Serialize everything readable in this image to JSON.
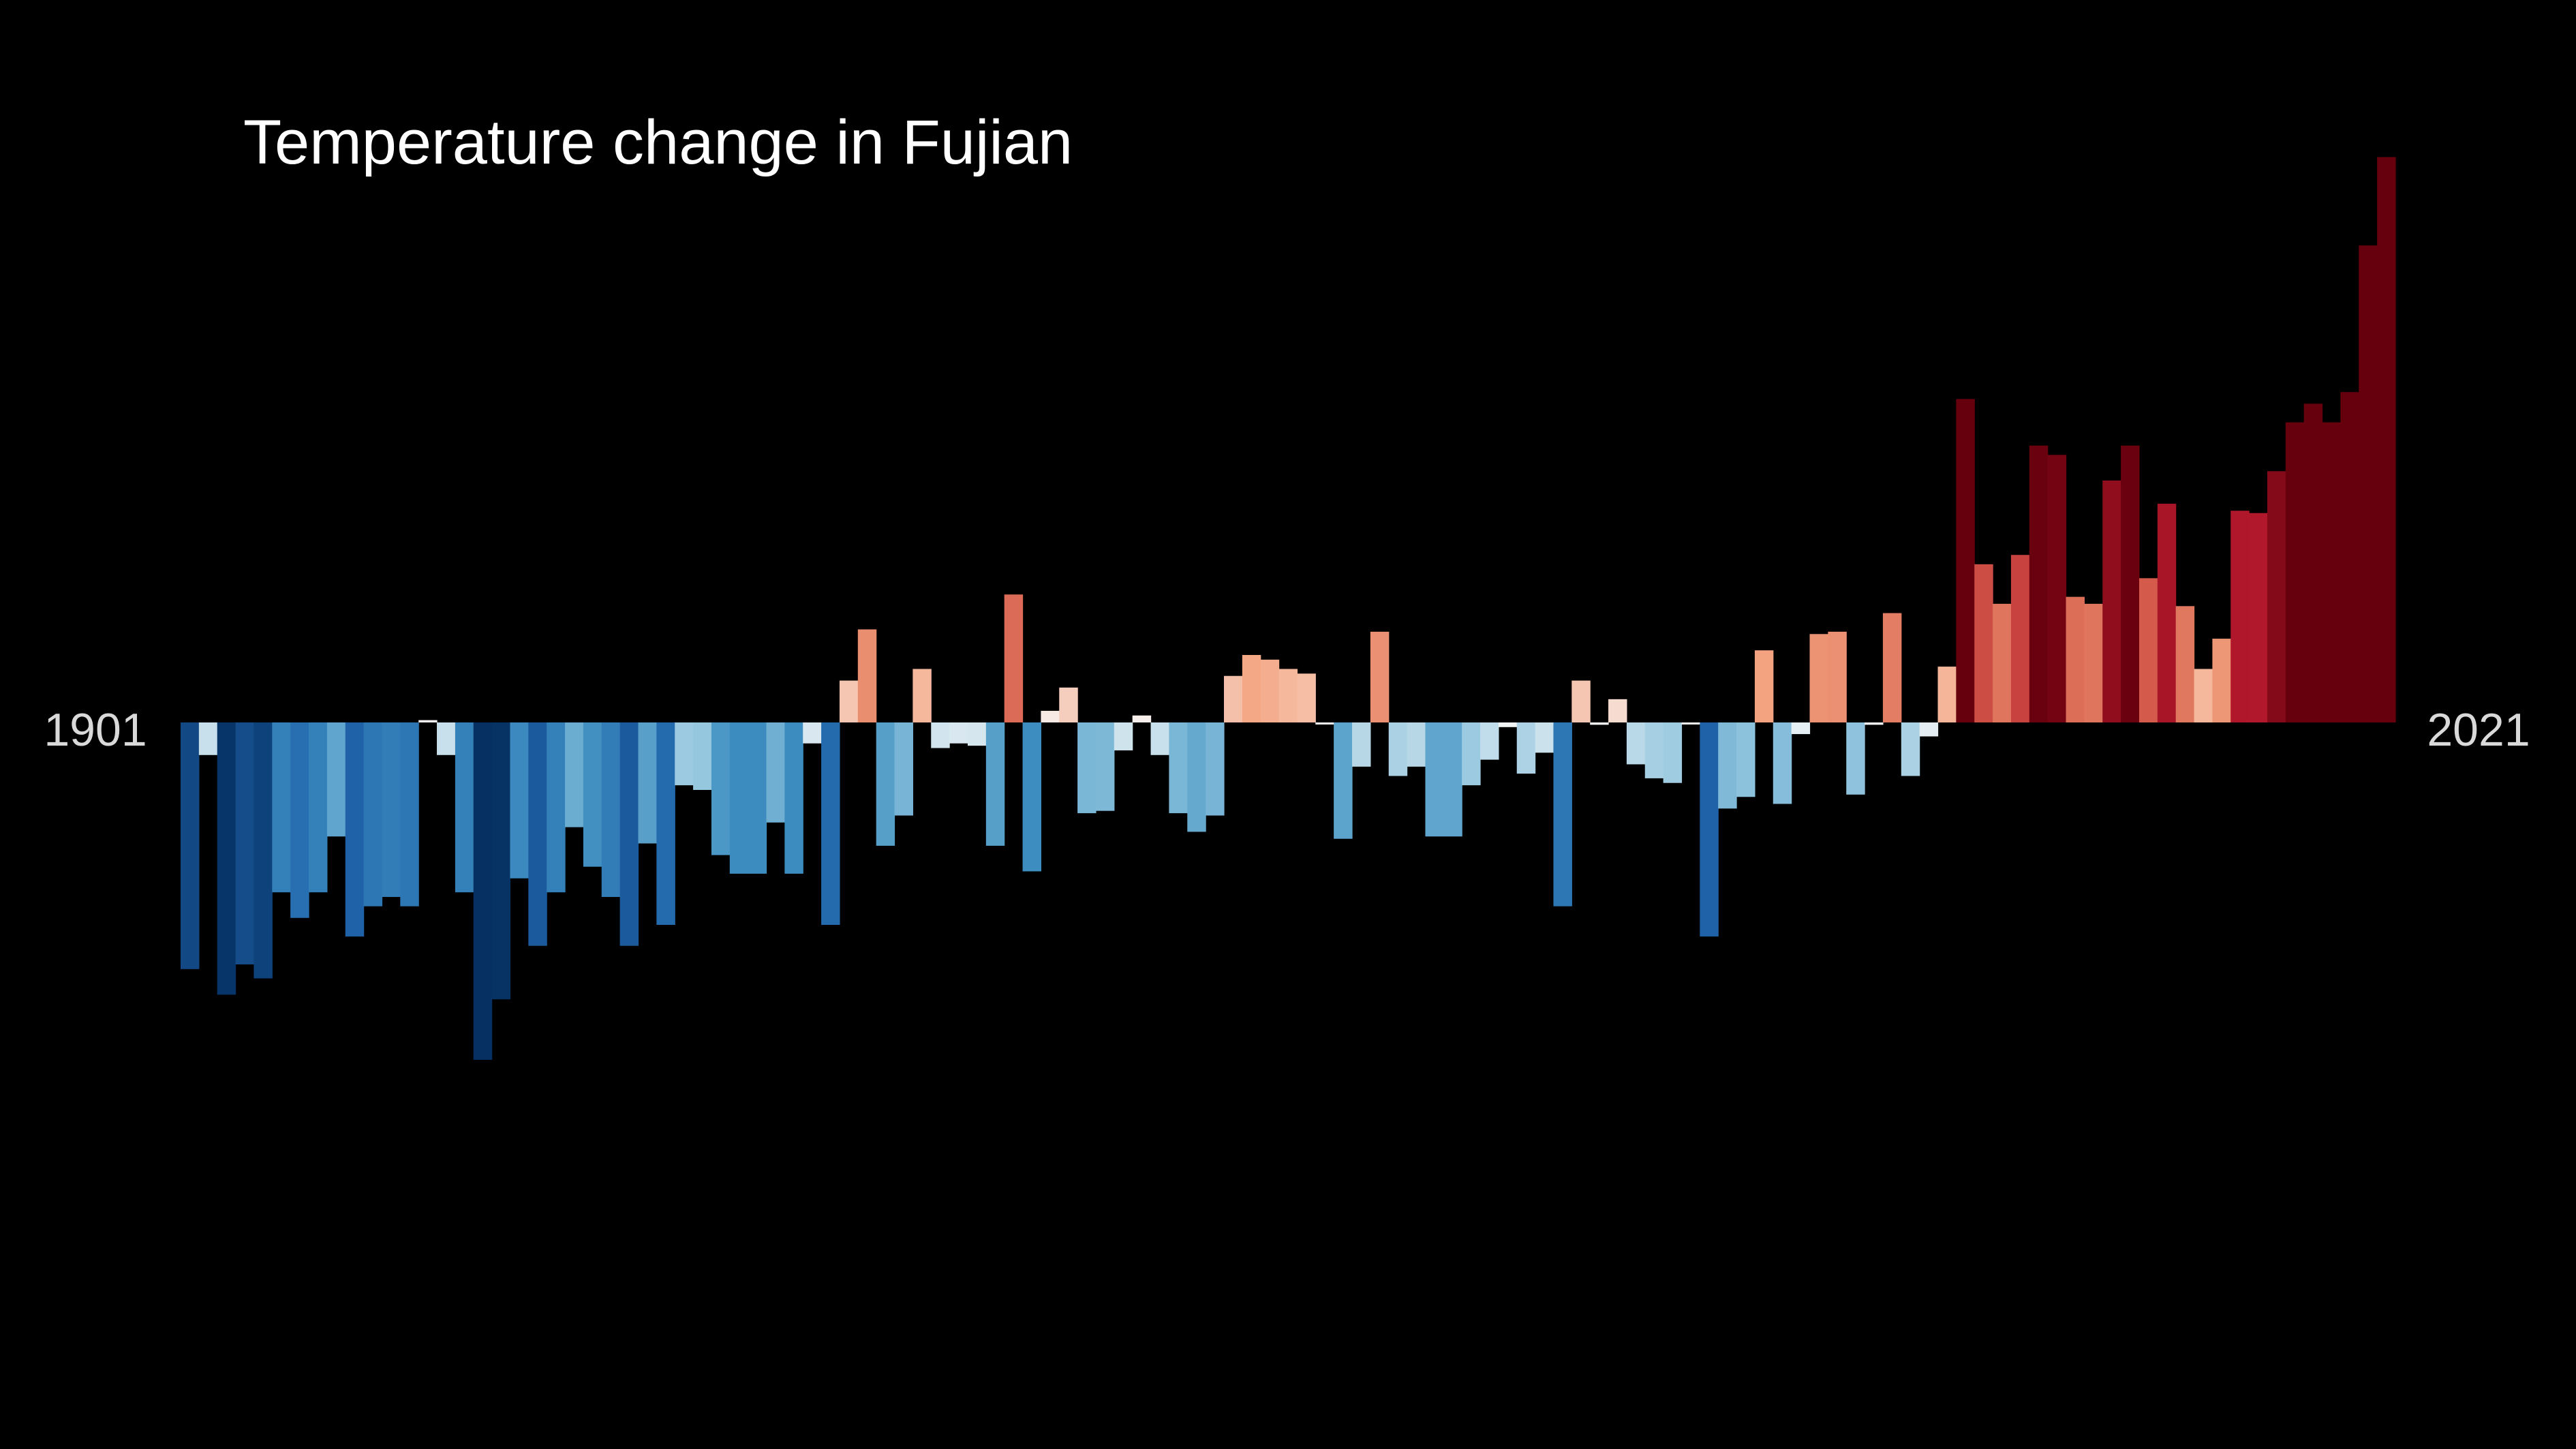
{
  "chart_data": {
    "type": "bar",
    "title": "Temperature change in Fujian",
    "xlabel": "",
    "ylabel": "",
    "x_start": 1901,
    "x_end": 2021,
    "start_label": "1901",
    "end_label": "2021",
    "grid": false,
    "legend": "none",
    "axes_visible": false,
    "ylim": [
      -1.45,
      2.43
    ],
    "colormap": "RdBu_r",
    "background_color": "#000000",
    "values": [
      -1.06,
      -0.14,
      -1.17,
      -1.04,
      -1.1,
      -0.73,
      -0.84,
      -0.73,
      -0.49,
      -0.92,
      -0.79,
      -0.75,
      -0.79,
      0.01,
      -0.14,
      -0.73,
      -1.45,
      -1.19,
      -0.67,
      -0.96,
      -0.73,
      -0.45,
      -0.62,
      -0.75,
      -0.96,
      -0.52,
      -0.87,
      -0.27,
      -0.29,
      -0.57,
      -0.65,
      -0.65,
      -0.43,
      -0.65,
      -0.09,
      -0.87,
      0.18,
      0.4,
      -0.53,
      -0.4,
      0.23,
      -0.11,
      -0.09,
      -0.1,
      -0.53,
      0.55,
      -0.64,
      0.05,
      0.15,
      -0.39,
      -0.38,
      -0.12,
      0.03,
      -0.14,
      -0.39,
      -0.47,
      -0.4,
      0.2,
      0.29,
      0.27,
      0.23,
      0.21,
      0.0,
      -0.5,
      -0.19,
      0.39,
      -0.23,
      -0.19,
      -0.49,
      -0.49,
      -0.27,
      -0.16,
      -0.02,
      -0.22,
      -0.13,
      -0.79,
      0.18,
      -0.01,
      0.1,
      -0.18,
      -0.24,
      -0.26,
      0.0,
      -0.92,
      -0.37,
      -0.32,
      0.31,
      -0.35,
      -0.05,
      0.38,
      0.39,
      -0.31,
      -0.01,
      0.47,
      -0.23,
      -0.06,
      0.24,
      1.39,
      0.68,
      0.51,
      0.72,
      1.19,
      1.15,
      0.54,
      0.51,
      1.04,
      1.19,
      0.62,
      0.94,
      0.5,
      0.23,
      0.36,
      0.91,
      0.9,
      1.08,
      1.29,
      1.37,
      1.29,
      1.42,
      2.05,
      2.43
    ]
  }
}
